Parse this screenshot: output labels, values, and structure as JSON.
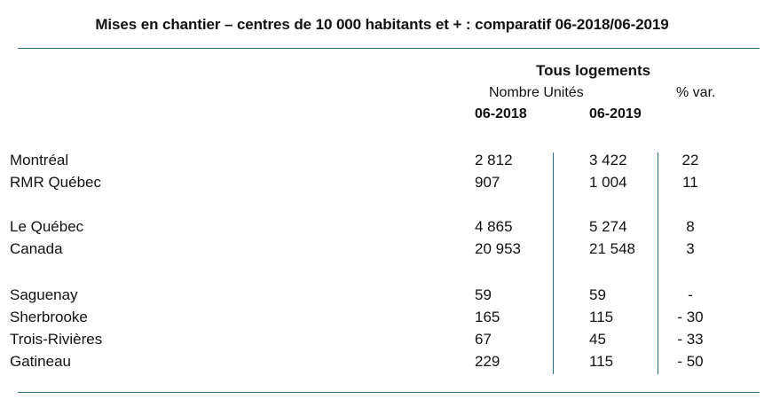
{
  "title": "Mises en chantier – centres de 10 000 habitants et + : comparatif 06-2018/06-2019",
  "header": {
    "group": "Tous logements",
    "units_label": "Nombre Unités",
    "var_label": "% var.",
    "col1": "06-2018",
    "col2": "06-2019"
  },
  "rows": [
    {
      "name": "Montréal",
      "v2018": "2 812",
      "v2019": "3 422",
      "var": "22"
    },
    {
      "name": "RMR Québec",
      "v2018": "907",
      "v2019": "1 004",
      "var": "11"
    },
    {
      "name": "Le Québec",
      "v2018": "4 865",
      "v2019": "5 274",
      "var": "8"
    },
    {
      "name": "Canada",
      "v2018": "20 953",
      "v2019": "21 548",
      "var": "3"
    },
    {
      "name": "Saguenay",
      "v2018": "59",
      "v2019": "59",
      "var": "-"
    },
    {
      "name": "Sherbrooke",
      "v2018": "165",
      "v2019": "115",
      "var": "- 30"
    },
    {
      "name": "Trois-Rivières",
      "v2018": "67",
      "v2019": "45",
      "var": "- 33"
    },
    {
      "name": "Gatineau",
      "v2018": "229",
      "v2019": "115",
      "var": "- 50"
    }
  ]
}
